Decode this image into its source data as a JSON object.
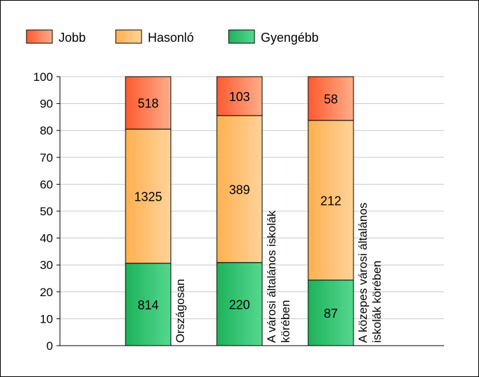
{
  "chart_data": {
    "type": "bar",
    "stacked": true,
    "normalized": true,
    "categories": [
      [
        "Országosan"
      ],
      [
        "A városi általános iskolák",
        "körében"
      ],
      [
        "A közepes városi általános",
        "iskolák körében"
      ]
    ],
    "series": [
      {
        "name": "Gyengébb",
        "color": "#22b560",
        "values": [
          814,
          220,
          87
        ]
      },
      {
        "name": "Hasonló",
        "color": "#ffb25a",
        "values": [
          1325,
          389,
          212
        ]
      },
      {
        "name": "Jobb",
        "color": "#ff6a3d",
        "values": [
          518,
          103,
          58
        ]
      }
    ],
    "legend_order": [
      "Jobb",
      "Hasonló",
      "Gyengébb"
    ],
    "legend_position": "top-left",
    "ylim": [
      0,
      100
    ],
    "yticks": [
      0,
      10,
      20,
      30,
      40,
      50,
      60,
      70,
      80,
      90,
      100
    ],
    "grid": true
  }
}
